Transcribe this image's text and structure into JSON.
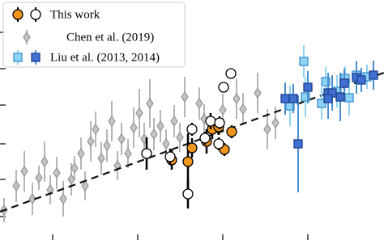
{
  "chart_data": {
    "type": "scatter",
    "xlim": [
      0,
      474
    ],
    "ylim": [
      0,
      297
    ],
    "xticks": [
      65,
      170,
      275,
      380
    ],
    "yticks": [
      29,
      75,
      119,
      167,
      212,
      257
    ],
    "legend": "upper left",
    "trend": {
      "x": [
        0,
        474
      ],
      "values": [
        35,
        207
      ],
      "color": "#111111"
    },
    "series": [
      {
        "name": "This work",
        "subsets": [
          {
            "marker": "circle",
            "fill": "#f0961e",
            "stroke": "#000000",
            "error_color": "#000000",
            "x": [
              212,
              232,
              237,
              255,
              262,
              270,
              277,
              286
            ],
            "values": [
              99,
              97,
              114,
              122,
              137,
              140,
              112,
              134
            ],
            "errors": [
              12,
              35,
              12,
              15,
              12,
              10,
              8,
              8
            ]
          },
          {
            "marker": "circle",
            "fill": "#ffffff",
            "stroke": "#000000",
            "error_color": "#000000",
            "x": [
              181,
              210,
              232,
              237,
              253,
              260,
              271,
              276,
              285,
              270
            ],
            "values": [
              107,
              103,
              57,
              137,
              126,
              147,
              145,
              189,
              206,
              119
            ],
            "errors": [
              20,
              10,
              18,
              8,
              8,
              10,
              8,
              6,
              6,
              8
            ]
          }
        ]
      },
      {
        "name": "Chen et al. (2019)",
        "subsets": [
          {
            "marker": "diamond",
            "fill": "#c4c4c4",
            "stroke": "#9a9a9a",
            "error_color": "#b5b5b5",
            "x": [
              5,
              20,
              30,
              40,
              48,
              55,
              62,
              70,
              78,
              88,
              92,
              100,
              105,
              112,
              118,
              125,
              132,
              138,
              145,
              150,
              158,
              165,
              172,
              178,
              185,
              190,
              198,
              205,
              215,
              222,
              228,
              246,
              252,
              275,
              292,
              300,
              318,
              330,
              340
            ],
            "values": [
              37,
              67,
              85,
              51,
              77,
              97,
              62,
              83,
              51,
              75,
              89,
              107,
              67,
              122,
              137,
              101,
              117,
              147,
              92,
              125,
              107,
              139,
              157,
              125,
              169,
              131,
              141,
              119,
              147,
              127,
              177,
              169,
              150,
              161,
              175,
              162,
              182,
              137,
              145
            ],
            "errors": [
              15,
              20,
              25,
              20,
              15,
              25,
              18,
              20,
              22,
              20,
              15,
              20,
              18,
              25,
              22,
              20,
              20,
              25,
              18,
              20,
              18,
              25,
              30,
              20,
              30,
              20,
              20,
              18,
              20,
              18,
              25,
              20,
              18,
              20,
              25,
              20,
              25,
              25,
              20
            ]
          }
        ]
      },
      {
        "name": "Liu et al. (2013, 2014)",
        "subsets": [
          {
            "marker": "square",
            "fill": "#8fd3f5",
            "stroke": "#3a8fd0",
            "error_color": "#8fd3f5",
            "x": [
              375,
              402,
              358,
              416,
              426,
              440,
              453,
              431,
              377,
              397
            ],
            "values": [
              221,
              196,
              166,
              184,
              200,
              204,
              202,
              176,
              177,
              169
            ],
            "errors": [
              20,
              18,
              25,
              20,
              15,
              18,
              15,
              22,
              25,
              20
            ]
          },
          {
            "marker": "square",
            "fill": "#3f6fd0",
            "stroke": "#1c3f8f",
            "error_color": "#4a90d0",
            "x": [
              352,
              362,
              368,
              380,
              405,
              410,
              420,
              425,
              440,
              446,
              461,
              405
            ],
            "values": [
              175,
              175,
              119,
              189,
              182,
              182,
              177,
              194,
              201,
              198,
              204,
              175
            ],
            "errors": [
              20,
              18,
              60,
              20,
              25,
              22,
              30,
              18,
              20,
              15,
              18,
              25
            ]
          }
        ]
      }
    ]
  }
}
